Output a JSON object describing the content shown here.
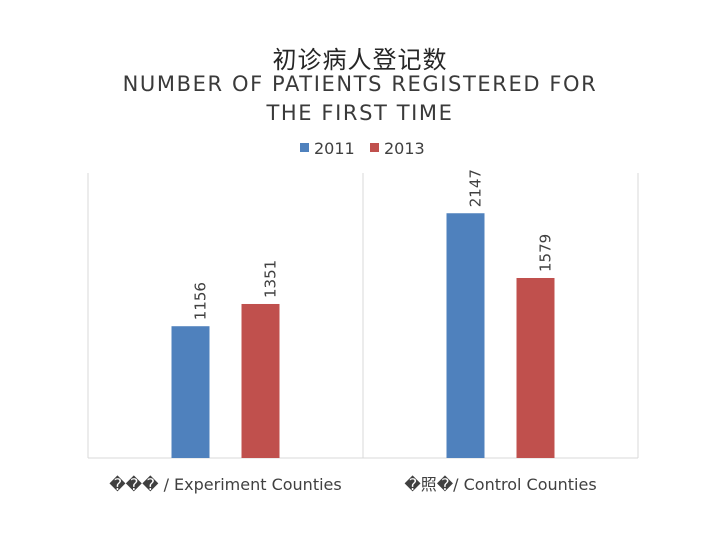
{
  "chart_data": {
    "type": "bar",
    "title": "初诊病人登记数",
    "subtitle": "NUMBER OF PATIENTS REGISTERED FOR THE FIRST TIME",
    "categories": [
      "��� / Experiment Counties",
      "�照�/ Control Counties"
    ],
    "series": [
      {
        "name": "2011",
        "values": [
          1156,
          2147
        ],
        "color": "#4f81bd"
      },
      {
        "name": "2013",
        "values": [
          1351,
          1579
        ],
        "color": "#c0504d"
      }
    ],
    "ylim": [
      0,
      2500
    ],
    "grid": false,
    "legend": "top",
    "data_labels": "rotated-vertical"
  }
}
